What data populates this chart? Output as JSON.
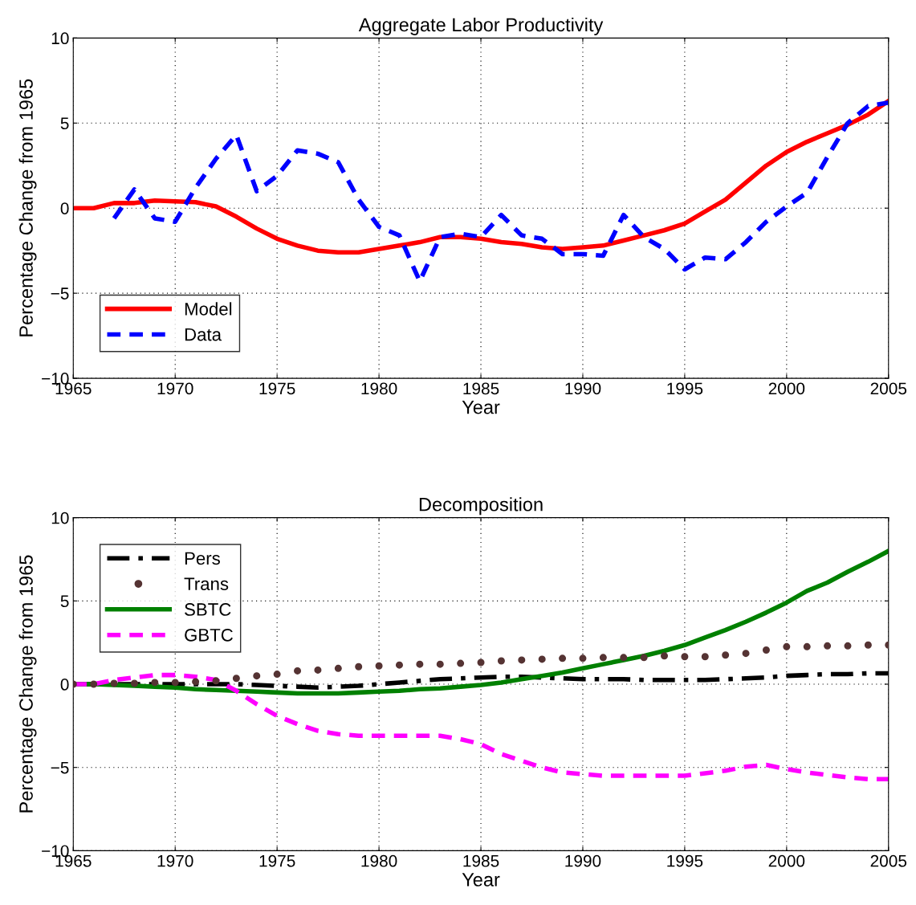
{
  "chart_data": [
    {
      "type": "line",
      "title": "Aggregate Labor Productivity",
      "xlabel": "Year",
      "ylabel": "Percentage Change from 1965",
      "x": [
        1965,
        1966,
        1967,
        1968,
        1969,
        1970,
        1971,
        1972,
        1973,
        1974,
        1975,
        1976,
        1977,
        1978,
        1979,
        1980,
        1981,
        1982,
        1983,
        1984,
        1985,
        1986,
        1987,
        1988,
        1989,
        1990,
        1991,
        1992,
        1993,
        1994,
        1995,
        1996,
        1997,
        1998,
        1999,
        2000,
        2001,
        2002,
        2003,
        2004,
        2005
      ],
      "series": [
        {
          "name": "Model",
          "color": "#ff0000",
          "line_style": "solid",
          "values": [
            0,
            0,
            0.3,
            0.3,
            0.45,
            0.4,
            0.35,
            0.1,
            -0.5,
            -1.2,
            -1.8,
            -2.2,
            -2.5,
            -2.6,
            -2.6,
            -2.4,
            -2.2,
            -2.0,
            -1.7,
            -1.7,
            -1.8,
            -2.0,
            -2.1,
            -2.3,
            -2.4,
            -2.3,
            -2.2,
            -1.9,
            -1.6,
            -1.3,
            -0.9,
            -0.2,
            0.5,
            1.5,
            2.5,
            3.3,
            3.9,
            4.4,
            4.9,
            5.5,
            6.3
          ]
        },
        {
          "name": "Data",
          "color": "#0000ff",
          "line_style": "dashed",
          "x": [
            1967,
            1968,
            1969,
            1970,
            1971,
            1972,
            1973,
            1974,
            1975,
            1976,
            1977,
            1978,
            1979,
            1980,
            1981,
            1982,
            1983,
            1984,
            1985,
            1986,
            1987,
            1988,
            1989,
            1990,
            1991,
            1992,
            1993,
            1994,
            1995,
            1996,
            1997,
            1998,
            1999,
            2000,
            2001,
            2002,
            2003,
            2004,
            2005
          ],
          "values": [
            -0.6,
            1.1,
            -0.6,
            -0.8,
            1.2,
            2.9,
            4.3,
            1.0,
            1.9,
            3.4,
            3.2,
            2.7,
            0.5,
            -1.1,
            -1.6,
            -4.3,
            -1.7,
            -1.5,
            -1.7,
            -0.4,
            -1.6,
            -1.8,
            -2.7,
            -2.7,
            -2.8,
            -0.4,
            -1.7,
            -2.4,
            -3.6,
            -2.9,
            -3.0,
            -2.0,
            -0.8,
            0.1,
            0.9,
            3.0,
            5.0,
            6.0,
            6.2
          ]
        }
      ],
      "xlim": [
        1965,
        2005
      ],
      "xticks": [
        1965,
        1970,
        1975,
        1980,
        1985,
        1990,
        1995,
        2000,
        2005
      ],
      "ylim": [
        -10,
        10
      ],
      "yticks": [
        -10,
        -5,
        0,
        5,
        10
      ],
      "grid": true,
      "legend": "bottom left"
    },
    {
      "type": "line",
      "title": "Decomposition",
      "xlabel": "Year",
      "ylabel": "Percentage Change from 1965",
      "x": [
        1965,
        1966,
        1967,
        1968,
        1969,
        1970,
        1971,
        1972,
        1973,
        1974,
        1975,
        1976,
        1977,
        1978,
        1979,
        1980,
        1981,
        1982,
        1983,
        1984,
        1985,
        1986,
        1987,
        1988,
        1989,
        1990,
        1991,
        1992,
        1993,
        1994,
        1995,
        1996,
        1997,
        1998,
        1999,
        2000,
        2001,
        2002,
        2003,
        2004,
        2005
      ],
      "series": [
        {
          "name": "Pers",
          "color": "#000000",
          "line_style": "dashdot",
          "values": [
            0,
            0,
            0,
            0,
            0,
            0,
            0,
            0,
            0,
            -0.05,
            -0.1,
            -0.15,
            -0.2,
            -0.15,
            -0.1,
            0,
            0.1,
            0.2,
            0.3,
            0.35,
            0.4,
            0.45,
            0.45,
            0.4,
            0.35,
            0.3,
            0.3,
            0.3,
            0.25,
            0.25,
            0.25,
            0.25,
            0.3,
            0.35,
            0.4,
            0.5,
            0.55,
            0.6,
            0.6,
            0.65,
            0.65
          ]
        },
        {
          "name": "Trans",
          "color": "#553333",
          "type": "scatter",
          "marker": "circle",
          "values": [
            0,
            0,
            0.05,
            0.05,
            0.1,
            0.1,
            0.15,
            0.2,
            0.35,
            0.5,
            0.6,
            0.8,
            0.85,
            0.95,
            1.05,
            1.1,
            1.15,
            1.2,
            1.2,
            1.25,
            1.3,
            1.4,
            1.45,
            1.5,
            1.55,
            1.55,
            1.6,
            1.6,
            1.6,
            1.7,
            1.65,
            1.65,
            1.75,
            1.85,
            2.05,
            2.25,
            2.25,
            2.3,
            2.3,
            2.35,
            2.35
          ]
        },
        {
          "name": "SBTC",
          "color": "#008000",
          "line_style": "solid",
          "values": [
            0,
            0,
            -0.05,
            -0.1,
            -0.15,
            -0.2,
            -0.3,
            -0.35,
            -0.4,
            -0.45,
            -0.5,
            -0.55,
            -0.55,
            -0.55,
            -0.5,
            -0.45,
            -0.4,
            -0.3,
            -0.25,
            -0.15,
            -0.05,
            0.1,
            0.3,
            0.5,
            0.7,
            0.95,
            1.2,
            1.45,
            1.7,
            2.0,
            2.35,
            2.8,
            3.25,
            3.75,
            4.3,
            4.9,
            5.6,
            6.1,
            6.75,
            7.35,
            8.0
          ]
        },
        {
          "name": "GBTC",
          "color": "#ff00ff",
          "line_style": "dashed",
          "values": [
            0,
            0,
            0.25,
            0.4,
            0.55,
            0.55,
            0.45,
            0.25,
            -0.4,
            -1.2,
            -1.9,
            -2.4,
            -2.8,
            -3.0,
            -3.1,
            -3.1,
            -3.1,
            -3.1,
            -3.1,
            -3.3,
            -3.6,
            -4.2,
            -4.6,
            -5.0,
            -5.3,
            -5.4,
            -5.5,
            -5.5,
            -5.5,
            -5.5,
            -5.5,
            -5.35,
            -5.2,
            -4.95,
            -4.85,
            -5.1,
            -5.3,
            -5.45,
            -5.6,
            -5.7,
            -5.7
          ]
        }
      ],
      "xlim": [
        1965,
        2005
      ],
      "xticks": [
        1965,
        1970,
        1975,
        1980,
        1985,
        1990,
        1995,
        2000,
        2005
      ],
      "ylim": [
        -10,
        10
      ],
      "yticks": [
        -10,
        -5,
        0,
        5,
        10
      ],
      "grid": true,
      "legend": "top left"
    }
  ]
}
